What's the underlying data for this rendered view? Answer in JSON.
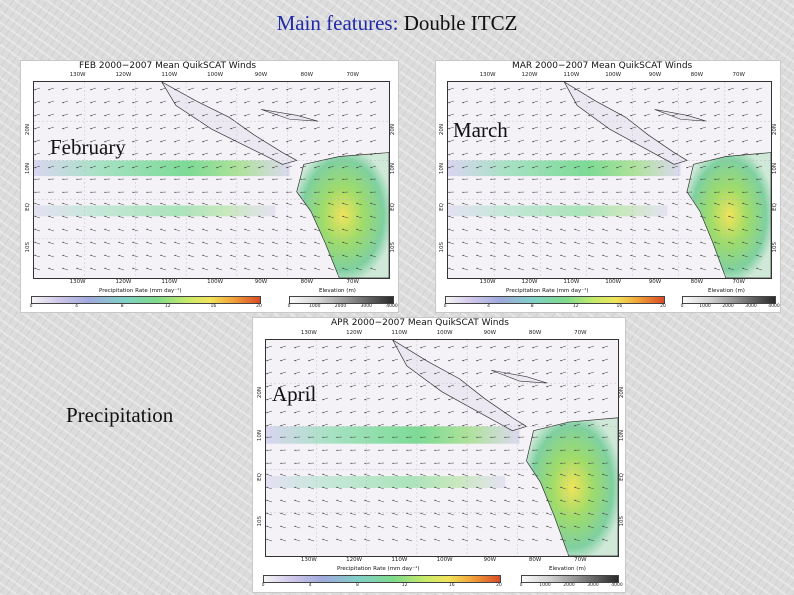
{
  "title": {
    "keyword": "Main features:",
    "value": "Double ITCZ"
  },
  "labels": {
    "feb": "February",
    "mar": "March",
    "apr": "April",
    "precip": "Precipitation"
  },
  "panels": [
    {
      "key": "feb",
      "title": "FEB 2000−2007 Mean QuikSCAT Winds"
    },
    {
      "key": "mar",
      "title": "MAR 2000−2007 Mean QuikSCAT Winds"
    },
    {
      "key": "apr",
      "title": "APR 2000−2007 Mean QuikSCAT Winds"
    }
  ],
  "map_axes": {
    "lon_ticks": [
      "130W",
      "120W",
      "110W",
      "100W",
      "90W",
      "80W",
      "70W"
    ],
    "lat_ticks": [
      "20N",
      "10N",
      "EQ",
      "10S"
    ]
  },
  "colorbars": {
    "precip_label": "Precipitation Rate (mm day⁻¹)",
    "elev_label": "Elevation (m)",
    "precip_ticks_feb": [
      "0",
      "4",
      "8",
      "12",
      "16",
      "20"
    ],
    "precip_ticks_mar": [
      "0",
      "4",
      "8",
      "12",
      "16",
      "20"
    ],
    "precip_ticks_apr": [
      "0",
      "4",
      "8",
      "12",
      "16",
      "20"
    ],
    "elev_ticks": [
      "0",
      "1000",
      "2000",
      "3000",
      "4000"
    ]
  },
  "colors": {
    "title_keyword": "#1f2aa8",
    "itcz": "#7edb8a",
    "amazon": "#f1e45a"
  }
}
